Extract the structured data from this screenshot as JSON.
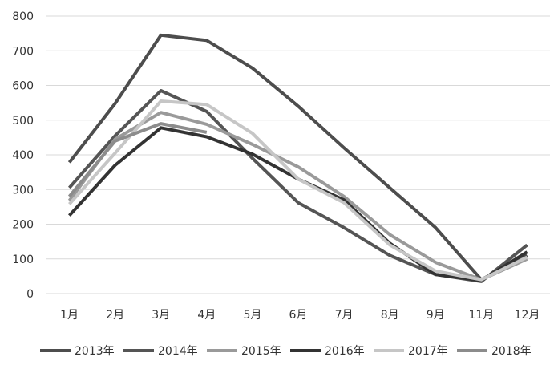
{
  "chart_data": {
    "type": "line",
    "title": "",
    "xlabel": "",
    "ylabel": "",
    "categories": [
      "1月",
      "2月",
      "3月",
      "4月",
      "5月",
      "6月",
      "7月",
      "8月",
      "9月",
      "11月",
      "12月"
    ],
    "ylim": [
      0,
      800
    ],
    "yticks": [
      0,
      100,
      200,
      300,
      400,
      500,
      600,
      700,
      800
    ],
    "grid": true,
    "legend_position": "bottom",
    "series": [
      {
        "name": "2013年",
        "color": "#4d4d4d",
        "values": [
          378,
          548,
          745,
          730,
          650,
          540,
          420,
          305,
          190,
          40,
          110
        ]
      },
      {
        "name": "2014年",
        "color": "#555555",
        "values": [
          305,
          455,
          585,
          525,
          390,
          262,
          190,
          110,
          55,
          35,
          140
        ]
      },
      {
        "name": "2015年",
        "color": "#9a9a9a",
        "values": [
          268,
          445,
          522,
          488,
          430,
          365,
          280,
          170,
          90,
          40,
          100
        ]
      },
      {
        "name": "2016年",
        "color": "#333333",
        "values": [
          225,
          370,
          478,
          452,
          402,
          330,
          270,
          145,
          55,
          38,
          120
        ]
      },
      {
        "name": "2017年",
        "color": "#c6c6c6",
        "values": [
          258,
          405,
          555,
          545,
          462,
          330,
          262,
          140,
          65,
          40,
          105
        ]
      },
      {
        "name": "2018年",
        "color": "#8c8c8c",
        "values": [
          280,
          440,
          490,
          465,
          null,
          null,
          null,
          null,
          null,
          null,
          null
        ]
      }
    ]
  }
}
